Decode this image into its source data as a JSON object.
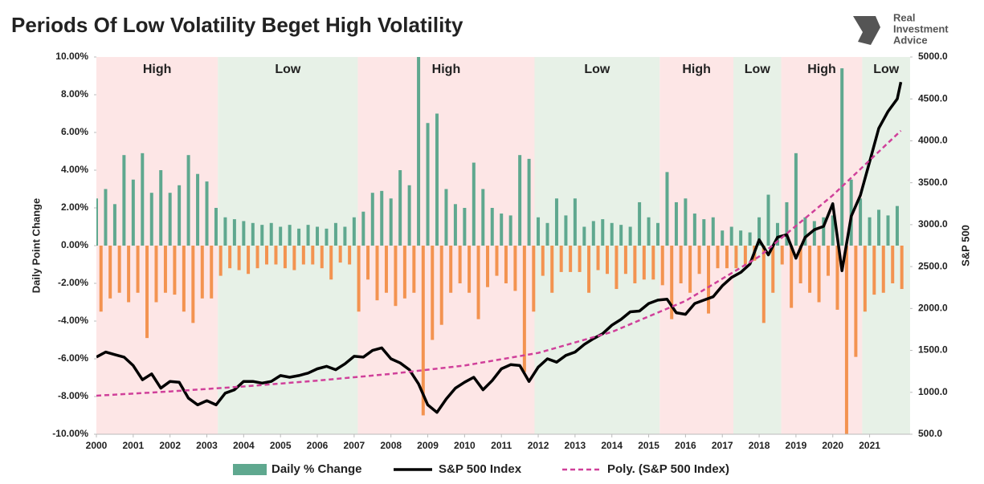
{
  "logo": [
    "Real",
    "Investment",
    "Advice"
  ],
  "chart_data": {
    "type": "combo",
    "title": "Periods Of Low Volatility Beget High Volatility",
    "ylabel": "Daily Point Change",
    "y2label": "S&P 500",
    "xlim": [
      2000,
      2022.1
    ],
    "xticks": [
      2000,
      2001,
      2002,
      2003,
      2004,
      2005,
      2006,
      2007,
      2008,
      2009,
      2010,
      2011,
      2012,
      2013,
      2014,
      2015,
      2016,
      2017,
      2018,
      2019,
      2020,
      2021
    ],
    "ylim": [
      -10,
      10
    ],
    "yticks": [
      {
        "value": -10,
        "label": "-10.00%"
      },
      {
        "value": -8,
        "label": "-8.00%"
      },
      {
        "value": -6,
        "label": "-6.00%"
      },
      {
        "value": -4,
        "label": "-4.00%"
      },
      {
        "value": -2,
        "label": "-2.00%"
      },
      {
        "value": 0,
        "label": "0.00%"
      },
      {
        "value": 2,
        "label": "2.00%"
      },
      {
        "value": 4,
        "label": "4.00%"
      },
      {
        "value": 6,
        "label": "6.00%"
      },
      {
        "value": 8,
        "label": "8.00%"
      },
      {
        "value": 10,
        "label": "10.00%"
      }
    ],
    "y2lim": [
      500,
      5000
    ],
    "y2ticks": [
      {
        "value": 500,
        "label": "500.0"
      },
      {
        "value": 1000,
        "label": "1000.0"
      },
      {
        "value": 1500,
        "label": "1500.0"
      },
      {
        "value": 2000,
        "label": "2000.0"
      },
      {
        "value": 2500,
        "label": "2500.0"
      },
      {
        "value": 3000,
        "label": "3000.0"
      },
      {
        "value": 3500,
        "label": "3500.0"
      },
      {
        "value": 4000,
        "label": "4000.0"
      },
      {
        "value": 4500,
        "label": "4500.0"
      },
      {
        "value": 5000,
        "label": "5000.0"
      }
    ],
    "grid": false,
    "legend": "bottom",
    "regions": [
      {
        "label": "High",
        "start": 2000,
        "end": 2003.3,
        "color": "#fde6e6"
      },
      {
        "label": "Low",
        "start": 2003.3,
        "end": 2007.1,
        "color": "#e7f1e7"
      },
      {
        "label": "High",
        "start": 2007.1,
        "end": 2011.9,
        "color": "#fde6e6"
      },
      {
        "label": "Low",
        "start": 2011.9,
        "end": 2015.3,
        "color": "#e7f1e7"
      },
      {
        "label": "High",
        "start": 2015.3,
        "end": 2017.3,
        "color": "#fde6e6"
      },
      {
        "label": "Low",
        "start": 2017.3,
        "end": 2018.6,
        "color": "#e7f1e7"
      },
      {
        "label": "High",
        "start": 2018.6,
        "end": 2020.8,
        "color": "#fde6e6"
      },
      {
        "label": "Low",
        "start": 2020.8,
        "end": 2022.1,
        "color": "#e7f1e7"
      }
    ],
    "series": [
      {
        "name": "Daily % Change",
        "type": "bar",
        "axis": "y",
        "color": "#5fa88f",
        "negative_color": "#f39350",
        "x": [
          2000,
          2000.125,
          2000.25,
          2000.375,
          2000.5,
          2000.625,
          2000.75,
          2000.875,
          2001,
          2001.125,
          2001.25,
          2001.375,
          2001.5,
          2001.625,
          2001.75,
          2001.875,
          2002,
          2002.125,
          2002.25,
          2002.375,
          2002.5,
          2002.625,
          2002.75,
          2002.875,
          2003,
          2003.125,
          2003.25,
          2003.375,
          2003.5,
          2003.625,
          2003.75,
          2003.875,
          2004,
          2004.125,
          2004.25,
          2004.375,
          2004.5,
          2004.625,
          2004.75,
          2004.875,
          2005,
          2005.125,
          2005.25,
          2005.375,
          2005.5,
          2005.625,
          2005.75,
          2005.875,
          2006,
          2006.125,
          2006.25,
          2006.375,
          2006.5,
          2006.625,
          2006.75,
          2006.875,
          2007,
          2007.125,
          2007.25,
          2007.375,
          2007.5,
          2007.625,
          2007.75,
          2007.875,
          2008,
          2008.125,
          2008.25,
          2008.375,
          2008.5,
          2008.625,
          2008.75,
          2008.875,
          2009,
          2009.125,
          2009.25,
          2009.375,
          2009.5,
          2009.625,
          2009.75,
          2009.875,
          2010,
          2010.125,
          2010.25,
          2010.375,
          2010.5,
          2010.625,
          2010.75,
          2010.875,
          2011,
          2011.125,
          2011.25,
          2011.375,
          2011.5,
          2011.625,
          2011.75,
          2011.875,
          2012,
          2012.125,
          2012.25,
          2012.375,
          2012.5,
          2012.625,
          2012.75,
          2012.875,
          2013,
          2013.125,
          2013.25,
          2013.375,
          2013.5,
          2013.625,
          2013.75,
          2013.875,
          2014,
          2014.125,
          2014.25,
          2014.375,
          2014.5,
          2014.625,
          2014.75,
          2014.875,
          2015,
          2015.125,
          2015.25,
          2015.375,
          2015.5,
          2015.625,
          2015.75,
          2015.875,
          2016,
          2016.125,
          2016.25,
          2016.375,
          2016.5,
          2016.625,
          2016.75,
          2016.875,
          2017,
          2017.125,
          2017.25,
          2017.375,
          2017.5,
          2017.625,
          2017.75,
          2017.875,
          2018,
          2018.125,
          2018.25,
          2018.375,
          2018.5,
          2018.625,
          2018.75,
          2018.875,
          2019,
          2019.125,
          2019.25,
          2019.375,
          2019.5,
          2019.625,
          2019.75,
          2019.875,
          2020,
          2020.125,
          2020.25,
          2020.375,
          2020.5,
          2020.625,
          2020.75,
          2020.875,
          2021,
          2021.125,
          2021.25,
          2021.375,
          2021.5,
          2021.625,
          2021.75,
          2021.875
        ],
        "values": [
          2.5,
          -3.5,
          3.0,
          -2.8,
          2.2,
          -2.5,
          4.8,
          -3.0,
          3.5,
          -2.5,
          4.9,
          -4.9,
          2.8,
          -3.0,
          4.0,
          -2.5,
          2.8,
          -2.6,
          3.2,
          -3.5,
          4.8,
          -4.1,
          3.8,
          -2.8,
          3.4,
          -2.8,
          2.0,
          -1.6,
          1.5,
          -1.2,
          1.4,
          -1.3,
          1.3,
          -1.5,
          1.2,
          -1.2,
          1.1,
          -1.0,
          1.2,
          -1.0,
          1.0,
          -1.2,
          1.1,
          -1.3,
          0.9,
          -1.0,
          1.1,
          -1.0,
          1.0,
          -1.2,
          0.9,
          -1.8,
          1.2,
          -0.9,
          1.0,
          -1.0,
          1.5,
          -3.5,
          1.8,
          -1.8,
          2.8,
          -2.9,
          2.9,
          -2.5,
          2.5,
          -3.2,
          4.0,
          -2.8,
          3.2,
          -2.5,
          10.0,
          -9.0,
          6.5,
          -5.0,
          7.0,
          -4.2,
          3.0,
          -2.5,
          2.2,
          -2.0,
          2.0,
          -2.5,
          4.4,
          -3.9,
          3.0,
          -2.2,
          2.0,
          -1.6,
          1.7,
          -2.0,
          1.6,
          -2.4,
          4.8,
          -6.7,
          4.6,
          -3.5,
          1.5,
          -1.6,
          1.2,
          -2.5,
          2.5,
          -1.4,
          1.6,
          -1.4,
          2.5,
          -1.4,
          1.0,
          -2.5,
          1.3,
          -1.3,
          1.4,
          -1.5,
          1.2,
          -2.3,
          1.1,
          -1.5,
          1.0,
          -2.0,
          2.3,
          -1.8,
          1.5,
          -1.8,
          1.2,
          -2.1,
          3.9,
          -3.9,
          2.3,
          -2.0,
          2.5,
          -2.5,
          1.7,
          -1.5,
          1.4,
          -3.6,
          1.5,
          -1.2,
          0.8,
          -1.2,
          1.0,
          -1.2,
          0.8,
          -1.0,
          0.7,
          -0.8,
          1.5,
          -4.1,
          2.7,
          -2.5,
          1.2,
          -1.0,
          2.3,
          -3.3,
          4.9,
          -2.0,
          1.5,
          -2.5,
          1.3,
          -3.0,
          1.5,
          -1.6,
          1.6,
          -3.4,
          9.4,
          -10.0,
          3.5,
          -5.9,
          2.5,
          -3.5,
          1.5,
          -2.6,
          1.9,
          -2.5,
          1.6,
          -2.0,
          2.1,
          -2.3
        ]
      },
      {
        "name": "S&P 500 Index",
        "type": "line",
        "axis": "y2",
        "color": "#000000",
        "x": [
          2000,
          2000.25,
          2000.5,
          2000.75,
          2001,
          2001.25,
          2001.5,
          2001.75,
          2002,
          2002.25,
          2002.5,
          2002.75,
          2003,
          2003.25,
          2003.5,
          2003.75,
          2004,
          2004.25,
          2004.5,
          2004.75,
          2005,
          2005.25,
          2005.5,
          2005.75,
          2006,
          2006.25,
          2006.5,
          2006.75,
          2007,
          2007.25,
          2007.5,
          2007.75,
          2008,
          2008.25,
          2008.5,
          2008.75,
          2009,
          2009.25,
          2009.5,
          2009.75,
          2010,
          2010.25,
          2010.5,
          2010.75,
          2011,
          2011.25,
          2011.5,
          2011.75,
          2012,
          2012.25,
          2012.5,
          2012.75,
          2013,
          2013.25,
          2013.5,
          2013.75,
          2014,
          2014.25,
          2014.5,
          2014.75,
          2015,
          2015.25,
          2015.5,
          2015.75,
          2016,
          2016.25,
          2016.5,
          2016.75,
          2017,
          2017.25,
          2017.5,
          2017.75,
          2018,
          2018.25,
          2018.5,
          2018.75,
          2019,
          2019.25,
          2019.5,
          2019.75,
          2020,
          2020.25,
          2020.5,
          2020.75,
          2021,
          2021.25,
          2021.5,
          2021.75,
          2021.85
        ],
        "values": [
          1420,
          1480,
          1450,
          1420,
          1320,
          1150,
          1220,
          1050,
          1130,
          1120,
          930,
          850,
          900,
          850,
          990,
          1030,
          1130,
          1130,
          1110,
          1130,
          1200,
          1180,
          1200,
          1230,
          1280,
          1310,
          1270,
          1340,
          1430,
          1420,
          1500,
          1530,
          1400,
          1350,
          1270,
          1100,
          850,
          760,
          920,
          1050,
          1120,
          1180,
          1030,
          1140,
          1280,
          1330,
          1320,
          1130,
          1300,
          1400,
          1360,
          1440,
          1480,
          1570,
          1640,
          1700,
          1800,
          1870,
          1960,
          1970,
          2060,
          2100,
          2110,
          1950,
          1930,
          2060,
          2100,
          2140,
          2270,
          2370,
          2430,
          2530,
          2820,
          2640,
          2850,
          2880,
          2600,
          2850,
          2940,
          2980,
          3250,
          2450,
          3100,
          3350,
          3750,
          4150,
          4350,
          4500,
          4700
        ]
      },
      {
        "name": "Poly. (S&P 500 Index)",
        "type": "line",
        "axis": "y2",
        "color": "#d0409a",
        "dashed": true,
        "x": [
          2000,
          2002,
          2004,
          2006,
          2008,
          2010,
          2012,
          2014,
          2016,
          2018,
          2020,
          2021.85
        ],
        "values": [
          960,
          1010,
          1070,
          1140,
          1220,
          1320,
          1470,
          1720,
          2090,
          2620,
          3350,
          4120
        ]
      }
    ]
  }
}
